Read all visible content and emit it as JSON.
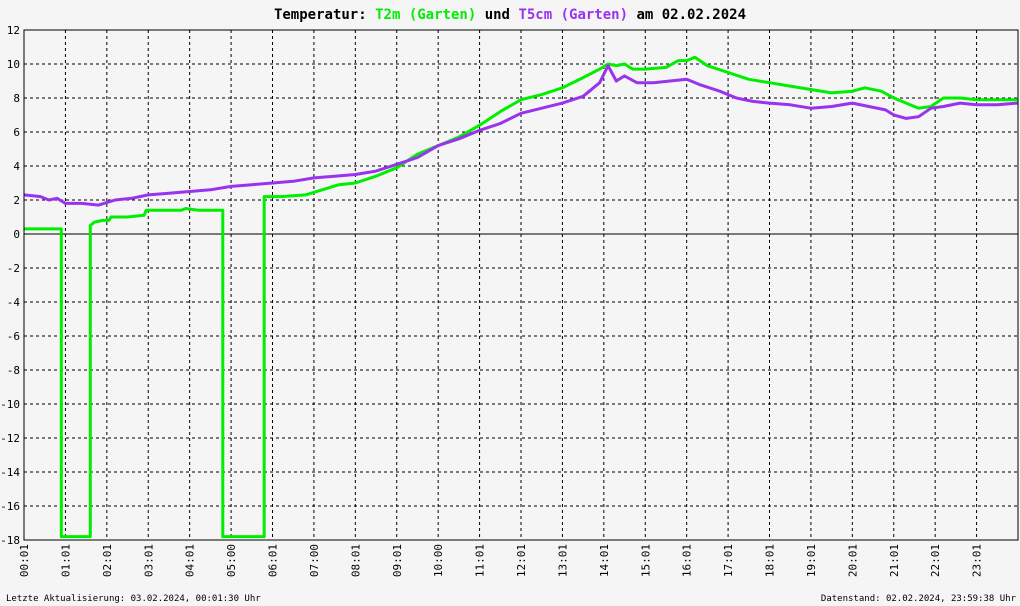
{
  "chart_data": {
    "type": "line",
    "title": {
      "prefix": "Temperatur:",
      "series1": "T2m (Garten)",
      "joiner": "und",
      "series2": "T5cm (Garten)",
      "suffix": "am 02.02.2024"
    },
    "xlabel": "",
    "ylabel": "",
    "ylim": [
      -18,
      12
    ],
    "yticks": [
      12,
      10,
      8,
      6,
      4,
      2,
      0,
      -2,
      -4,
      -6,
      -8,
      -10,
      -12,
      -14,
      -16,
      -18
    ],
    "ytick_labels": [
      "12",
      "10",
      "8",
      "6",
      "4",
      "2",
      "0",
      "-2",
      "-4",
      "-6",
      "-8",
      "-10",
      "-12",
      "-14",
      "-16",
      "-18"
    ],
    "xlim": [
      0,
      24
    ],
    "xticks": [
      0,
      1,
      2,
      3,
      4,
      5,
      6,
      7,
      8,
      9,
      10,
      11,
      12,
      13,
      14,
      15,
      16,
      17,
      18,
      19,
      20,
      21,
      22,
      23
    ],
    "xtick_labels": [
      "00:01",
      "01:01",
      "02:01",
      "03:01",
      "04:01",
      "05:00",
      "06:01",
      "07:00",
      "08:01",
      "09:01",
      "10:00",
      "11:01",
      "12:01",
      "13:01",
      "14:01",
      "15:01",
      "16:01",
      "17:01",
      "18:01",
      "19:01",
      "20:01",
      "21:01",
      "22:01",
      "23:01"
    ],
    "grid": true,
    "zero_line": true,
    "legend": "none",
    "series": [
      {
        "name": "T2m (Garten)",
        "color": "#00ee00",
        "x": [
          0,
          0.9,
          0.9,
          1.6,
          1.6,
          1.7,
          1.9,
          2.05,
          2.1,
          2.5,
          2.9,
          2.95,
          3.5,
          3.8,
          3.9,
          4.2,
          4.8,
          4.8,
          5.8,
          5.8,
          6.2,
          6.8,
          7.2,
          7.6,
          8.0,
          8.5,
          9.0,
          9.5,
          10.0,
          10.5,
          11.0,
          11.5,
          12.0,
          12.5,
          13.0,
          13.5,
          13.9,
          14.1,
          14.3,
          14.5,
          14.7,
          15.0,
          15.5,
          15.8,
          16.0,
          16.2,
          16.5,
          17.0,
          17.5,
          18.0,
          18.5,
          19.0,
          19.5,
          20.0,
          20.3,
          20.7,
          21.0,
          21.3,
          21.6,
          21.9,
          22.2,
          22.6,
          23.0,
          23.5,
          24.0
        ],
        "values": [
          0.3,
          0.3,
          -17.8,
          -17.8,
          0.5,
          0.7,
          0.8,
          0.8,
          1.0,
          1.0,
          1.1,
          1.4,
          1.4,
          1.4,
          1.5,
          1.4,
          1.4,
          -17.8,
          -17.8,
          2.2,
          2.2,
          2.3,
          2.6,
          2.9,
          3.0,
          3.4,
          3.9,
          4.7,
          5.2,
          5.7,
          6.4,
          7.2,
          7.9,
          8.2,
          8.6,
          9.2,
          9.7,
          10.0,
          9.9,
          10.0,
          9.7,
          9.7,
          9.8,
          10.2,
          10.2,
          10.4,
          9.9,
          9.5,
          9.1,
          8.9,
          8.7,
          8.5,
          8.3,
          8.4,
          8.6,
          8.4,
          8.0,
          7.7,
          7.4,
          7.5,
          8.0,
          8.0,
          7.9,
          7.9,
          7.9
        ]
      },
      {
        "name": "T5cm (Garten)",
        "color": "#9933ee",
        "x": [
          0,
          0.4,
          0.6,
          0.8,
          1.0,
          1.4,
          1.8,
          2.2,
          2.6,
          3.0,
          3.5,
          4.0,
          4.5,
          5.0,
          5.5,
          6.0,
          6.5,
          7.0,
          7.5,
          8.0,
          8.5,
          9.0,
          9.5,
          10.0,
          10.5,
          11.0,
          11.5,
          12.0,
          12.5,
          13.0,
          13.5,
          13.9,
          14.1,
          14.3,
          14.5,
          14.8,
          15.2,
          15.6,
          16.0,
          16.3,
          16.8,
          17.2,
          17.6,
          18.0,
          18.5,
          19.0,
          19.5,
          20.0,
          20.4,
          20.8,
          21.0,
          21.3,
          21.6,
          21.9,
          22.2,
          22.6,
          23.0,
          23.5,
          24.0
        ],
        "values": [
          2.3,
          2.2,
          2.0,
          2.1,
          1.8,
          1.8,
          1.7,
          2.0,
          2.1,
          2.3,
          2.4,
          2.5,
          2.6,
          2.8,
          2.9,
          3.0,
          3.1,
          3.3,
          3.4,
          3.5,
          3.7,
          4.1,
          4.5,
          5.2,
          5.6,
          6.1,
          6.5,
          7.1,
          7.4,
          7.7,
          8.1,
          8.9,
          9.9,
          9.0,
          9.3,
          8.9,
          8.9,
          9.0,
          9.1,
          8.8,
          8.4,
          8.0,
          7.8,
          7.7,
          7.6,
          7.4,
          7.5,
          7.7,
          7.5,
          7.3,
          7.0,
          6.8,
          6.9,
          7.4,
          7.5,
          7.7,
          7.6,
          7.6,
          7.7
        ]
      }
    ],
    "footer": {
      "left": "Letzte Aktualisierung: 03.02.2024, 00:01:30 Uhr",
      "right": "Datenstand: 02.02.2024, 23:59:38 Uhr"
    }
  }
}
